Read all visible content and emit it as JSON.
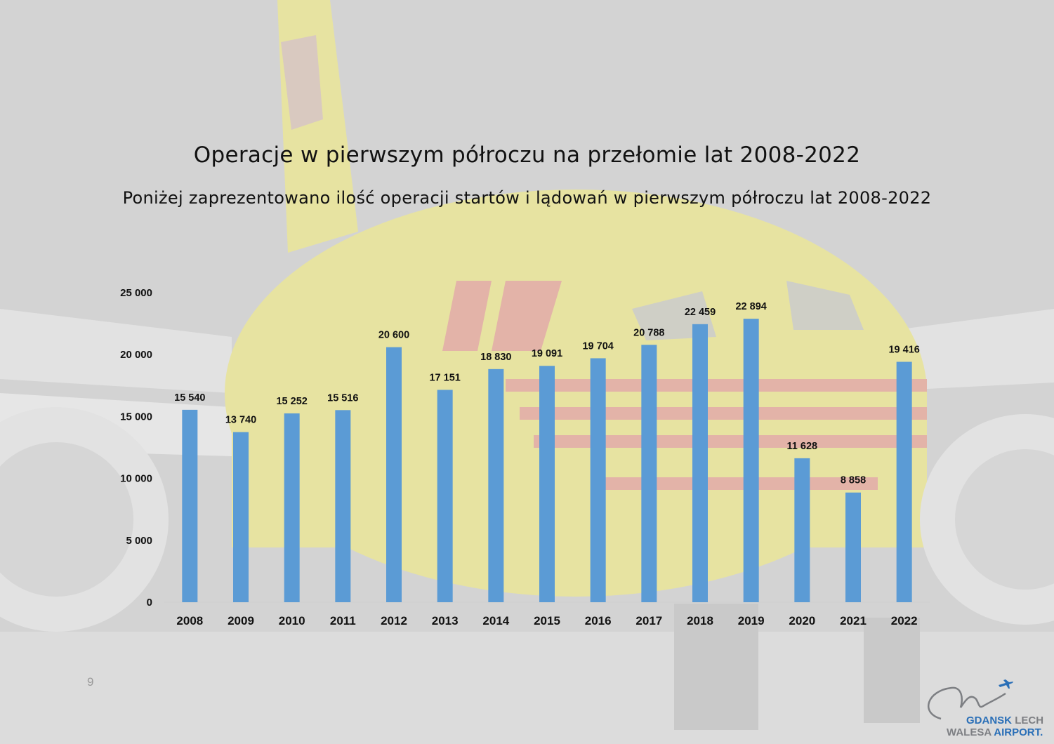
{
  "title": "Operacje w pierwszym półroczu na przełomie lat 2008-2022",
  "subtitle": "Poniżej zaprezentowano ilość operacji startów i lądowań w pierwszym półroczu lat 2008-2022",
  "page_number": "9",
  "logo": {
    "line1_a": "GDANSK",
    "line1_b": "LECH",
    "line2_a": "WALESA",
    "line2_b": "AIRPORT."
  },
  "colors": {
    "bar": "#5b9bd5",
    "background": "#d3d3d3"
  },
  "chart_data": {
    "type": "bar",
    "categories": [
      "2008",
      "2009",
      "2010",
      "2011",
      "2012",
      "2013",
      "2014",
      "2015",
      "2016",
      "2017",
      "2018",
      "2019",
      "2020",
      "2021",
      "2022"
    ],
    "values": [
      15540,
      13740,
      15252,
      15516,
      20600,
      17151,
      18830,
      19091,
      19704,
      20788,
      22459,
      22894,
      11628,
      8858,
      19416
    ],
    "value_labels": [
      "15 540",
      "13 740",
      "15 252",
      "15 516",
      "20 600",
      "17 151",
      "18 830",
      "19 091",
      "19 704",
      "20 788",
      "22 459",
      "22 894",
      "11 628",
      "8 858",
      "19 416"
    ],
    "y_ticks": [
      0,
      5000,
      10000,
      15000,
      20000,
      25000
    ],
    "y_tick_labels": [
      "0",
      "5 000",
      "10 000",
      "15 000",
      "20 000",
      "25 000"
    ],
    "ylim": [
      0,
      25000
    ],
    "grid": false,
    "legend": "none"
  }
}
